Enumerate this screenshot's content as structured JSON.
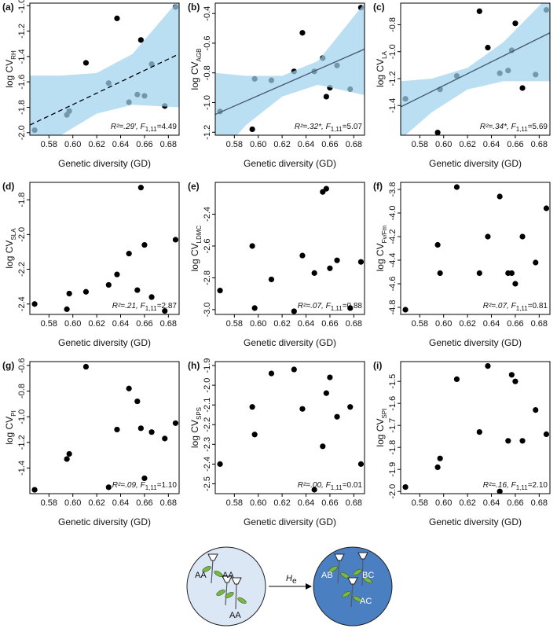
{
  "chart_data": [
    {
      "type": "scatter",
      "label": "(a)",
      "ylabel": "log CV",
      "ylabel_sub": "RH",
      "xlabel": "Genetic diversity (GD)",
      "x": [
        0.568,
        0.595,
        0.597,
        0.611,
        0.63,
        0.637,
        0.647,
        0.654,
        0.657,
        0.66,
        0.666,
        0.677,
        0.686
      ],
      "values": [
        -1.98,
        -1.86,
        -1.83,
        -1.45,
        -1.61,
        -1.1,
        -1.76,
        -1.7,
        -1.27,
        -1.71,
        -1.46,
        -1.79,
        -1.01
      ],
      "xlim": [
        0.564,
        0.689
      ],
      "xticks": [
        0.58,
        {
          "value": 0.6,
          "label": "0.60"
        },
        0.62,
        0.64,
        0.66,
        0.68
      ],
      "ylim": [
        -2.02,
        -0.98
      ],
      "yticks": [
        {
          "value": -2,
          "label": "-2.0"
        },
        -1.8,
        -1.6,
        -1.4,
        -1.2,
        {
          "value": -1,
          "label": "-1.0"
        }
      ],
      "point_color": "#000000",
      "band_color": "#9fd3ee",
      "line_color": "#000000",
      "line_style": "dashed",
      "band": {
        "x": [
          0.564,
          0.59,
          0.62,
          0.65,
          0.689
        ],
        "upper": [
          -1.55,
          -1.55,
          -1.53,
          -1.38,
          -0.95
        ],
        "lower": [
          -2.3,
          -2.02,
          -1.85,
          -1.78,
          -1.8
        ]
      },
      "trend": {
        "x": [
          0.564,
          0.689
        ],
        "y": [
          -1.94,
          -1.38
        ]
      },
      "stat": [
        "R²=.29′, ",
        "F",
        "1,11",
        "=4.49"
      ]
    },
    {
      "type": "scatter",
      "label": "(b)",
      "ylabel": "log CV",
      "ylabel_sub": "AGB",
      "xlabel": "Genetic diversity (GD)",
      "x": [
        0.568,
        0.595,
        0.597,
        0.611,
        0.63,
        0.637,
        0.647,
        0.654,
        0.657,
        0.66,
        0.666,
        0.677,
        0.686
      ],
      "values": [
        -1.06,
        -1.18,
        -0.84,
        -0.85,
        -0.79,
        -0.53,
        -0.79,
        -0.7,
        -0.96,
        -0.9,
        -0.75,
        -0.91,
        -0.36
      ],
      "xlim": [
        0.564,
        0.689
      ],
      "xticks": [
        0.58,
        {
          "value": 0.6,
          "label": "0.60"
        },
        0.62,
        0.64,
        0.66,
        0.68
      ],
      "ylim": [
        -1.22,
        -0.33
      ],
      "yticks": [
        -1.2,
        {
          "value": -1,
          "label": "-1.0"
        },
        -0.8,
        -0.6,
        -0.4
      ],
      "point_color": "#000000",
      "band_color": "#9fd3ee",
      "line_color": "#46586b",
      "line_style": "solid",
      "band": {
        "x": [
          0.564,
          0.59,
          0.62,
          0.65,
          0.689
        ],
        "upper": [
          -0.8,
          -0.82,
          -0.82,
          -0.72,
          -0.33
        ],
        "lower": [
          -1.38,
          -1.15,
          -0.96,
          -0.88,
          -0.95
        ]
      },
      "trend": {
        "x": [
          0.564,
          0.689
        ],
        "y": [
          -1.08,
          -0.64
        ]
      },
      "stat": [
        "R²=.32*, ",
        "F",
        "1,11",
        "=5.07"
      ]
    },
    {
      "type": "scatter",
      "label": "(c)",
      "ylabel": "log CV",
      "ylabel_sub": "LA",
      "xlabel": "Genetic diversity (GD)",
      "x": [
        0.568,
        0.595,
        0.597,
        0.611,
        0.63,
        0.637,
        0.647,
        0.654,
        0.657,
        0.66,
        0.666,
        0.677,
        0.686
      ],
      "values": [
        -1.35,
        -1.6,
        -1.28,
        -1.18,
        -0.7,
        -0.97,
        -1.16,
        -1.14,
        -0.99,
        -0.79,
        -1.27,
        -1.17,
        -0.69
      ],
      "xlim": [
        0.564,
        0.689
      ],
      "xticks": [
        0.58,
        {
          "value": 0.6,
          "label": "0.60"
        },
        0.62,
        0.64,
        0.66,
        0.68
      ],
      "ylim": [
        -1.62,
        -0.64
      ],
      "yticks": [
        -1.4,
        -1.2,
        {
          "value": -1,
          "label": "-1.0"
        },
        -0.8
      ],
      "point_color": "#000000",
      "band_color": "#9fd3ee",
      "line_color": "#46586b",
      "line_style": "solid",
      "band": {
        "x": [
          0.564,
          0.59,
          0.62,
          0.65,
          0.689
        ],
        "upper": [
          -1.22,
          -1.2,
          -1.12,
          -0.93,
          -0.58
        ],
        "lower": [
          -1.65,
          -1.45,
          -1.28,
          -1.22,
          -1.22
        ]
      },
      "trend": {
        "x": [
          0.564,
          0.689
        ],
        "y": [
          -1.41,
          -0.86
        ]
      },
      "stat": [
        "R²=.34*, ",
        "F",
        "1,11",
        "=5.69"
      ]
    },
    {
      "type": "scatter",
      "label": "(d)",
      "ylabel": "log CV",
      "ylabel_sub": "SLA",
      "xlabel": "Genetic diversity (GD)",
      "x": [
        0.568,
        0.595,
        0.597,
        0.611,
        0.63,
        0.637,
        0.647,
        0.654,
        0.657,
        0.66,
        0.666,
        0.677,
        0.686
      ],
      "values": [
        -2.4,
        -2.43,
        -2.34,
        -2.33,
        -2.29,
        -2.23,
        -2.11,
        -2.32,
        -1.73,
        -2.06,
        -2.36,
        -2.44,
        -2.03
      ],
      "xlim": [
        0.564,
        0.689
      ],
      "xticks": [
        0.58,
        {
          "value": 0.6,
          "label": "0.60"
        },
        0.62,
        0.64,
        0.66,
        0.68
      ],
      "ylim": [
        -2.46,
        -1.7
      ],
      "yticks": [
        -2.4,
        -2.2,
        {
          "value": -2,
          "label": "-2.0"
        },
        -1.8
      ],
      "point_color": "#000000",
      "stat": [
        "R²=.21, ",
        "F",
        "1,11",
        "=2.87"
      ]
    },
    {
      "type": "scatter",
      "label": "(e)",
      "ylabel": "log CV",
      "ylabel_sub": "LDMC",
      "xlabel": "Genetic diversity (GD)",
      "x": [
        0.568,
        0.595,
        0.597,
        0.611,
        0.63,
        0.637,
        0.647,
        0.654,
        0.657,
        0.66,
        0.666,
        0.677,
        0.686
      ],
      "values": [
        -2.88,
        -2.6,
        -2.99,
        -2.81,
        -3.01,
        -2.66,
        -2.77,
        -2.26,
        -2.24,
        -2.74,
        -2.69,
        -2.99,
        -2.7
      ],
      "xlim": [
        0.564,
        0.689
      ],
      "xticks": [
        0.58,
        {
          "value": 0.6,
          "label": "0.60"
        },
        0.62,
        0.64,
        0.66,
        0.68
      ],
      "ylim": [
        -3.03,
        -2.2
      ],
      "yticks": [
        {
          "value": -3,
          "label": "-3.0"
        },
        -2.8,
        -2.6,
        -2.4
      ],
      "point_color": "#000000",
      "stat": [
        "R²=.07, ",
        "F",
        "1,11",
        "=0.88"
      ]
    },
    {
      "type": "scatter",
      "label": "(f)",
      "ylabel": "log CV",
      "ylabel_sub": "Fv/Fm",
      "xlabel": "Genetic diversity (GD)",
      "x": [
        0.568,
        0.595,
        0.597,
        0.611,
        0.63,
        0.637,
        0.647,
        0.654,
        0.657,
        0.66,
        0.666,
        0.677,
        0.686
      ],
      "values": [
        -4.82,
        -4.27,
        -4.51,
        -3.78,
        -4.51,
        -4.2,
        -3.86,
        -4.51,
        -4.51,
        -4.6,
        -4.2,
        -4.42,
        -3.96
      ],
      "xlim": [
        0.564,
        0.689
      ],
      "xticks": [
        0.58,
        {
          "value": 0.6,
          "label": "0.60"
        },
        0.62,
        0.64,
        0.66,
        0.68
      ],
      "ylim": [
        -4.86,
        -3.74
      ],
      "yticks": [
        -4.8,
        -4.6,
        -4.4,
        -4.2,
        {
          "value": -4,
          "label": "-4.0"
        },
        -3.8
      ],
      "point_color": "#000000",
      "stat": [
        "R²=.07, ",
        "F",
        "1,11",
        "=0.81"
      ]
    },
    {
      "type": "scatter",
      "label": "(g)",
      "ylabel": "log CV",
      "ylabel_sub": "PI",
      "xlabel": "Genetic diversity (GD)",
      "x": [
        0.568,
        0.595,
        0.597,
        0.611,
        0.63,
        0.637,
        0.647,
        0.654,
        0.657,
        0.66,
        0.666,
        0.677,
        0.686
      ],
      "values": [
        -1.57,
        -1.33,
        -1.29,
        -0.61,
        -1.55,
        -1.1,
        -0.78,
        -0.88,
        -1.09,
        -1.48,
        -1.12,
        -1.17,
        -1.05
      ],
      "xlim": [
        0.564,
        0.689
      ],
      "xticks": [
        0.58,
        {
          "value": 0.6,
          "label": "0.60"
        },
        0.62,
        0.64,
        0.66,
        0.68
      ],
      "ylim": [
        -1.6,
        -0.57
      ],
      "yticks": [
        -1.4,
        -1.2,
        {
          "value": -1,
          "label": "-1.0"
        },
        -0.8,
        -0.6
      ],
      "point_color": "#000000",
      "stat": [
        "R²=.09, ",
        "F",
        "1,11",
        "=1.10"
      ]
    },
    {
      "type": "scatter",
      "label": "(h)",
      "ylabel": "log CV",
      "ylabel_sub": "SPS",
      "xlabel": "Genetic diversity (GD)",
      "x": [
        0.568,
        0.595,
        0.597,
        0.611,
        0.63,
        0.637,
        0.647,
        0.654,
        0.657,
        0.66,
        0.666,
        0.677,
        0.686
      ],
      "values": [
        -2.4,
        -2.11,
        -2.25,
        -1.94,
        -1.92,
        -2.12,
        -2.53,
        -2.31,
        -2.04,
        -1.96,
        -2.16,
        -2.11,
        -2.4
      ],
      "xlim": [
        0.564,
        0.689
      ],
      "xticks": [
        0.58,
        {
          "value": 0.6,
          "label": "0.60"
        },
        0.62,
        0.64,
        0.66,
        0.68
      ],
      "ylim": [
        -2.55,
        -1.88
      ],
      "yticks": [
        -2.5,
        -2.4,
        -2.3,
        -2.2,
        -2.1,
        {
          "value": -2,
          "label": "-2.0"
        },
        -1.9
      ],
      "point_color": "#000000",
      "stat": [
        "R²=.00, ",
        "F",
        "1,11",
        "=0.01"
      ]
    },
    {
      "type": "scatter",
      "label": "(i)",
      "ylabel": "log CV",
      "ylabel_sub": "SPI",
      "xlabel": "Genetic diversity (GD)",
      "x": [
        0.568,
        0.595,
        0.597,
        0.611,
        0.63,
        0.637,
        0.647,
        0.654,
        0.657,
        0.66,
        0.666,
        0.677,
        0.686
      ],
      "values": [
        -1.98,
        -1.89,
        -1.85,
        -1.49,
        -1.73,
        -1.43,
        -2.0,
        -1.77,
        -1.47,
        -1.5,
        -1.77,
        -1.63,
        -1.74
      ],
      "xlim": [
        0.564,
        0.689
      ],
      "xticks": [
        0.58,
        {
          "value": 0.6,
          "label": "0.60"
        },
        0.62,
        0.64,
        0.66,
        0.68
      ],
      "ylim": [
        -2.01,
        -1.41
      ],
      "yticks": [
        {
          "value": -2,
          "label": "-2.0"
        },
        -1.9,
        -1.8,
        -1.7,
        -1.6,
        -1.5
      ],
      "point_color": "#000000",
      "stat": [
        "R²=.16, ",
        "F",
        "1,11",
        "=2.10"
      ]
    }
  ],
  "diagram": {
    "left_labels": [
      "AA",
      "AA",
      "AA"
    ],
    "right_labels": [
      "AB",
      "BC",
      "AC"
    ],
    "arrow_label": "H",
    "arrow_sub": "e"
  }
}
